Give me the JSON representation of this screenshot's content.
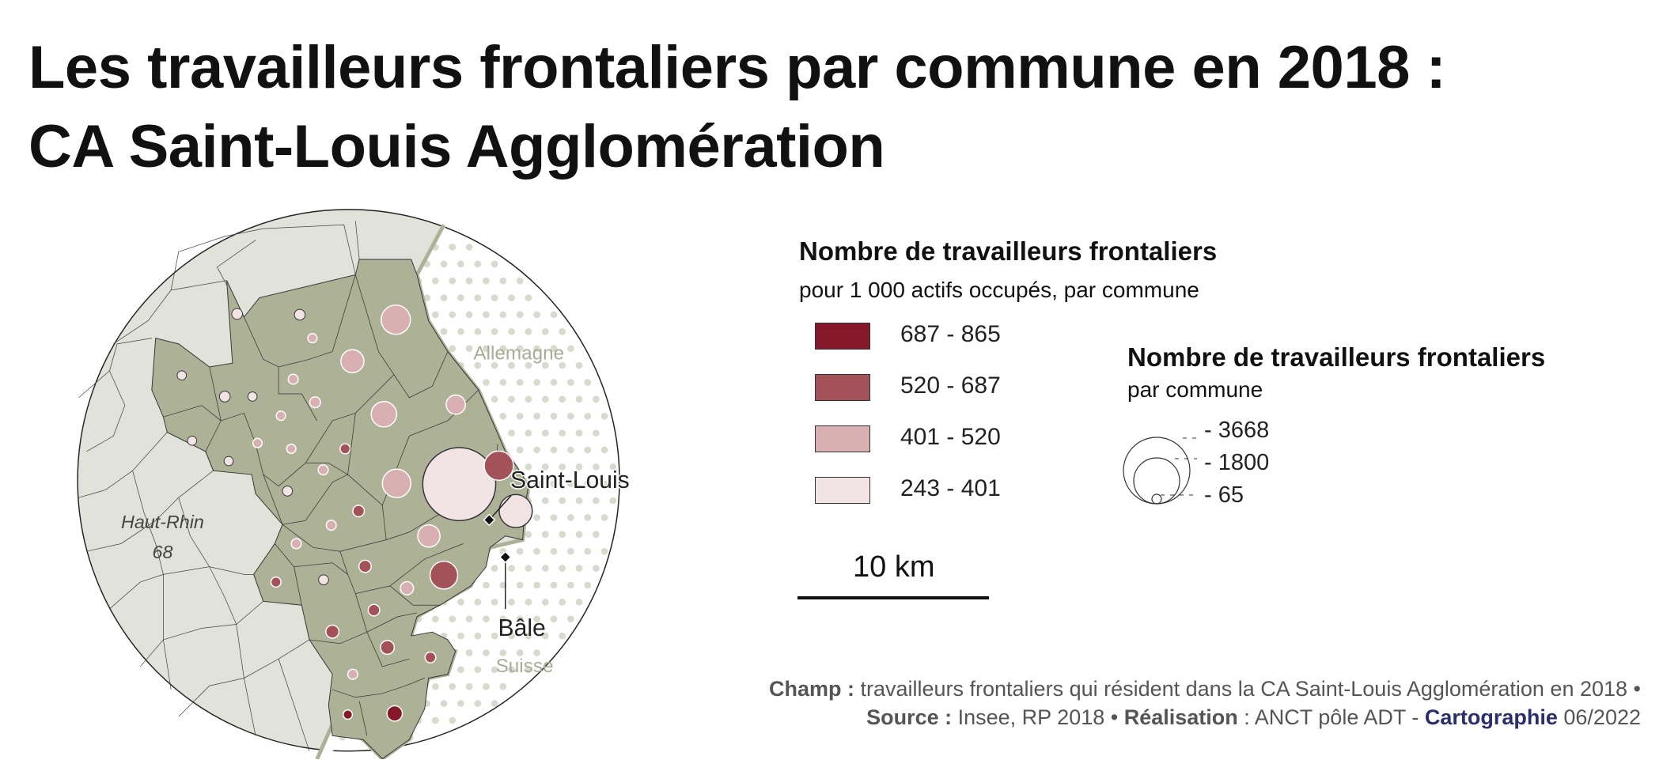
{
  "title": {
    "line1": "Les travailleurs frontaliers par commune en 2018 :",
    "line2": "CA Saint-Louis Agglomération"
  },
  "map": {
    "labels": {
      "germany": "Allemagne",
      "switzerland": "Suisse",
      "saint_louis": "Saint-Louis",
      "basel": "Bâle",
      "department": "Haut-Rhin",
      "department_code": "68"
    },
    "colors": {
      "background_communes": "#e1e3da",
      "epci_communes": "#adb297",
      "foreign_dots": "#d8dacd",
      "class_colors": [
        "#85192a",
        "#a4525a",
        "#d8b0b2",
        "#f2e3e4"
      ]
    }
  },
  "legend_rate": {
    "title": "Nombre de travailleurs frontaliers",
    "subtitle": "pour 1 000 actifs occupés, par commune",
    "classes": [
      {
        "label": "687 - 865",
        "color": "#85192a"
      },
      {
        "label": "520 - 687",
        "color": "#a4525a"
      },
      {
        "label": "401 - 520",
        "color": "#d8b0b2"
      },
      {
        "label": "243 - 401",
        "color": "#f2e3e4"
      }
    ]
  },
  "legend_size": {
    "title": "Nombre de travailleurs frontaliers",
    "subtitle": "par commune",
    "values": [
      "- 3668",
      "- 1800",
      "- 65"
    ]
  },
  "scale": {
    "label": "10 km"
  },
  "footer": {
    "champ_label": "Champ :",
    "champ_text": " travailleurs frontaliers qui résident dans la CA Saint-Louis Agglomération en 2018 •",
    "source_label": "Source :",
    "source_text": " Insee, RP 2018 • ",
    "realisation_label": "Réalisation",
    "realisation_text": " : ANCT pôle ADT - ",
    "carto_label": "Cartographie",
    "date": " 06/2022"
  }
}
